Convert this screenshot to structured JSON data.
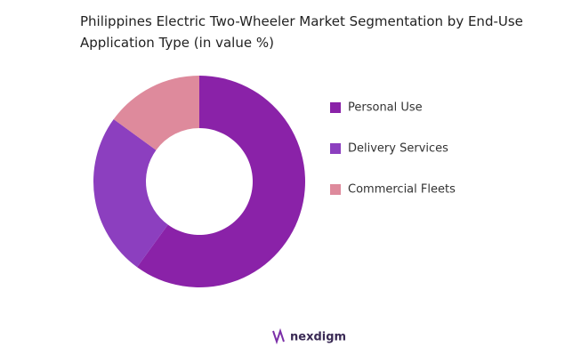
{
  "chart_data": {
    "type": "donut",
    "title": "Philippines Electric Two-Wheeler Market Segmentation by End-Use Application Type (in value %)",
    "categories": [
      "Personal Use",
      "Delivery Services",
      "Commercial Fleets"
    ],
    "values": [
      60,
      25,
      15
    ],
    "colors": [
      "#8a22a8",
      "#8c3fbf",
      "#de8a9c"
    ],
    "legend": "right"
  },
  "brand": "nexdigm"
}
